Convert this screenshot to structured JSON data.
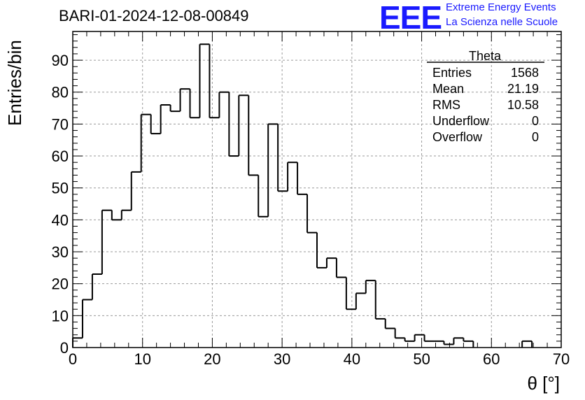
{
  "header": {
    "title": "BARI-01-2024-12-08-00849",
    "logo_text": "EEE",
    "logo_line1": "Extreme Energy Events",
    "logo_line2": "La Scienza nelle Scuole"
  },
  "stats": {
    "name": "Theta",
    "rows": [
      {
        "label": "Entries",
        "value": "1568"
      },
      {
        "label": "Mean",
        "value": "21.19"
      },
      {
        "label": "RMS",
        "value": "10.58"
      },
      {
        "label": "Underflow",
        "value": "0"
      },
      {
        "label": "Overflow",
        "value": "0"
      }
    ]
  },
  "colors": {
    "line": "#000000",
    "grid": "#9a9a9a",
    "logo": "#1a1aff"
  },
  "chart_data": {
    "type": "bar",
    "style": "step-histogram",
    "xlabel": "θ [°]",
    "ylabel": "Entries/bin",
    "xlim": [
      0,
      70
    ],
    "ylim": [
      0,
      99
    ],
    "bin_width": 1.4,
    "bin_edges_start": 0,
    "values": [
      3,
      15,
      23,
      43,
      40,
      43,
      55,
      73,
      67,
      76,
      74,
      81,
      72,
      95,
      72,
      80,
      60,
      79,
      54,
      41,
      70,
      49,
      58,
      48,
      36,
      25,
      28,
      22,
      12,
      17,
      21,
      9,
      6,
      3,
      2,
      4,
      2,
      2,
      1,
      3,
      2,
      0,
      0,
      0,
      0,
      0,
      2,
      0,
      0,
      0
    ],
    "xticks": [
      0,
      10,
      20,
      30,
      40,
      50,
      60,
      70
    ],
    "yticks": [
      0,
      10,
      20,
      30,
      40,
      50,
      60,
      70,
      80,
      90
    ],
    "grid": true,
    "legend": "stats box top-right"
  }
}
